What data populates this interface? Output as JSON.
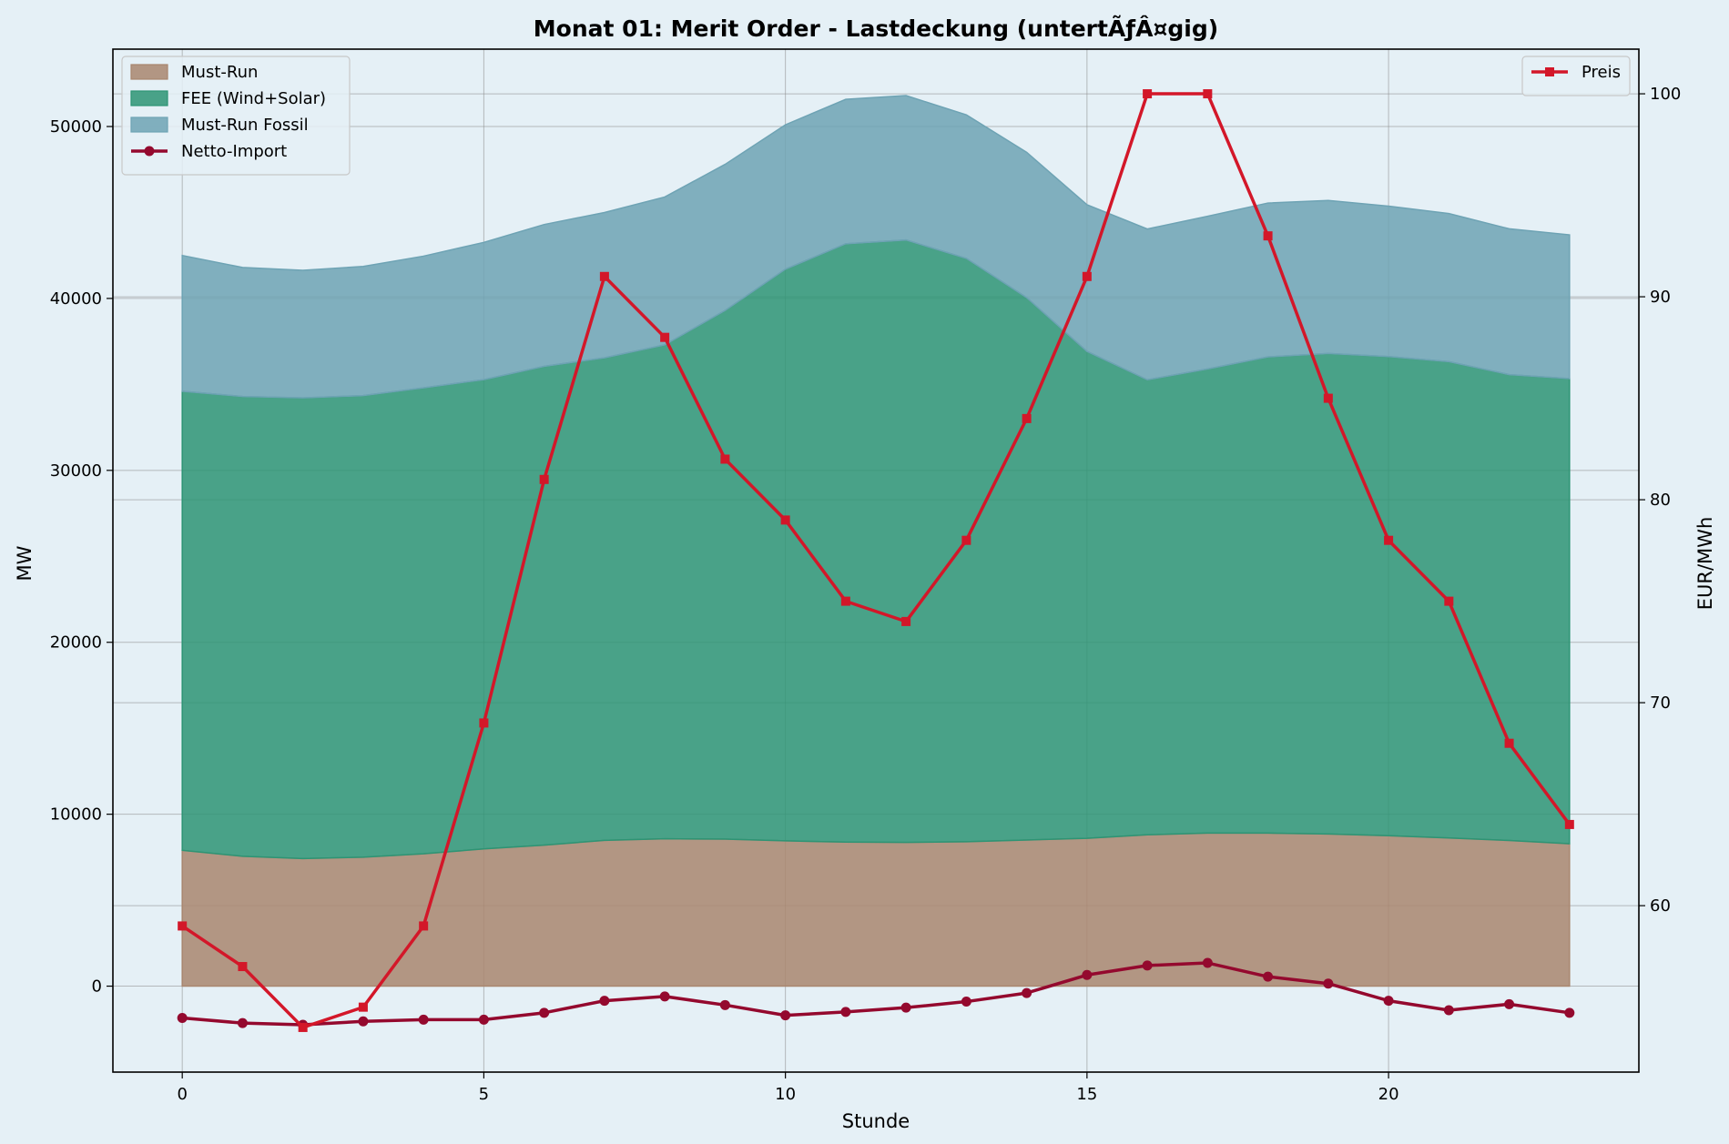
{
  "chart_data": {
    "type": "area",
    "title": "Monat 01: Merit Order - Lastdeckung (untertÃƒÂ¤gig)",
    "xlabel": "Stunde",
    "ylabel": "MW",
    "y2label": "EUR/MWh",
    "xlim": [
      -1.15,
      24.15
    ],
    "ylim": [
      -5000,
      54500
    ],
    "y2lim": [
      51.8,
      102.2
    ],
    "xticks": [
      "0",
      "5",
      "10",
      "15",
      "20"
    ],
    "yticks": [
      "0",
      "10000",
      "20000",
      "30000",
      "40000",
      "50000"
    ],
    "y2ticks": [
      "60",
      "70",
      "80",
      "90",
      "100"
    ],
    "grid": true,
    "x": [
      0,
      1,
      2,
      3,
      4,
      5,
      6,
      7,
      8,
      9,
      10,
      11,
      12,
      13,
      14,
      15,
      16,
      17,
      18,
      19,
      20,
      21,
      22,
      23
    ],
    "stacked_areas": [
      {
        "name": "Must-Run",
        "color": "#a9866f",
        "values": [
          7900,
          7550,
          7420,
          7500,
          7700,
          7980,
          8200,
          8480,
          8570,
          8550,
          8450,
          8380,
          8360,
          8400,
          8500,
          8600,
          8800,
          8900,
          8900,
          8850,
          8750,
          8620,
          8470,
          8280
        ]
      },
      {
        "name": "FEE (Wind+Solar)",
        "color": "#2e9474",
        "values": [
          26700,
          26750,
          26800,
          26850,
          27100,
          27300,
          27850,
          28070,
          28730,
          30750,
          33250,
          34800,
          35040,
          33930,
          31550,
          28320,
          26470,
          27000,
          27700,
          27950,
          27870,
          27700,
          27100,
          27060
        ]
      },
      {
        "name": "Must-Run Fossil",
        "color": "#6ea3b4",
        "values": [
          7900,
          7500,
          7420,
          7510,
          7660,
          7980,
          8250,
          8450,
          8600,
          8500,
          8400,
          8400,
          8400,
          8350,
          8450,
          8530,
          8770,
          8880,
          8950,
          8900,
          8750,
          8620,
          8480,
          8360
        ]
      }
    ],
    "lines": [
      {
        "name": "Netto-Import",
        "axis": "left",
        "color": "#94092e",
        "marker": "circle",
        "values": [
          -1850,
          -2150,
          -2250,
          -2050,
          -1950,
          -1950,
          -1550,
          -850,
          -600,
          -1100,
          -1700,
          -1500,
          -1250,
          -900,
          -400,
          650,
          1200,
          1350,
          550,
          150,
          -850,
          -1400,
          -1050,
          -1550
        ]
      },
      {
        "name": "Preis",
        "axis": "right",
        "color": "#d31729",
        "marker": "square",
        "values": [
          59,
          57,
          54,
          55,
          59,
          69,
          81,
          91,
          88,
          82,
          79,
          75,
          74,
          78,
          84,
          91,
          100,
          100,
          93,
          85,
          78,
          75,
          68,
          64
        ]
      }
    ],
    "legends": {
      "left": [
        "Must-Run",
        "FEE (Wind+Solar)",
        "Must-Run Fossil",
        "Netto-Import"
      ],
      "right": [
        "Preis"
      ]
    }
  }
}
